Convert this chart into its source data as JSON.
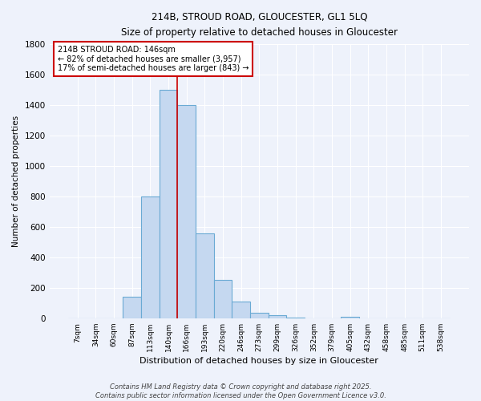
{
  "title_line1": "214B, STROUD ROAD, GLOUCESTER, GL1 5LQ",
  "title_line2": "Size of property relative to detached houses in Gloucester",
  "xlabel": "Distribution of detached houses by size in Gloucester",
  "ylabel": "Number of detached properties",
  "categories": [
    "7sqm",
    "34sqm",
    "60sqm",
    "87sqm",
    "113sqm",
    "140sqm",
    "166sqm",
    "193sqm",
    "220sqm",
    "246sqm",
    "273sqm",
    "299sqm",
    "326sqm",
    "352sqm",
    "379sqm",
    "405sqm",
    "432sqm",
    "458sqm",
    "485sqm",
    "511sqm",
    "538sqm"
  ],
  "values": [
    0,
    0,
    0,
    140,
    800,
    1500,
    1400,
    560,
    250,
    110,
    35,
    20,
    5,
    0,
    0,
    8,
    0,
    0,
    0,
    0,
    0
  ],
  "bar_color": "#c5d8f0",
  "bar_edge_color": "#6aaad4",
  "vline_x": 6.0,
  "vline_color": "#cc0000",
  "annotation_text": "214B STROUD ROAD: 146sqm\n← 82% of detached houses are smaller (3,957)\n17% of semi-detached houses are larger (843) →",
  "annotation_box_color": "#ffffff",
  "annotation_box_edge_color": "#cc0000",
  "ylim": [
    0,
    1800
  ],
  "yticks": [
    0,
    200,
    400,
    600,
    800,
    1000,
    1200,
    1400,
    1600,
    1800
  ],
  "background_color": "#eef2fb",
  "grid_color": "#ffffff",
  "footer_line1": "Contains HM Land Registry data © Crown copyright and database right 2025.",
  "footer_line2": "Contains public sector information licensed under the Open Government Licence v3.0.",
  "figsize": [
    6.0,
    5.0
  ],
  "dpi": 100
}
